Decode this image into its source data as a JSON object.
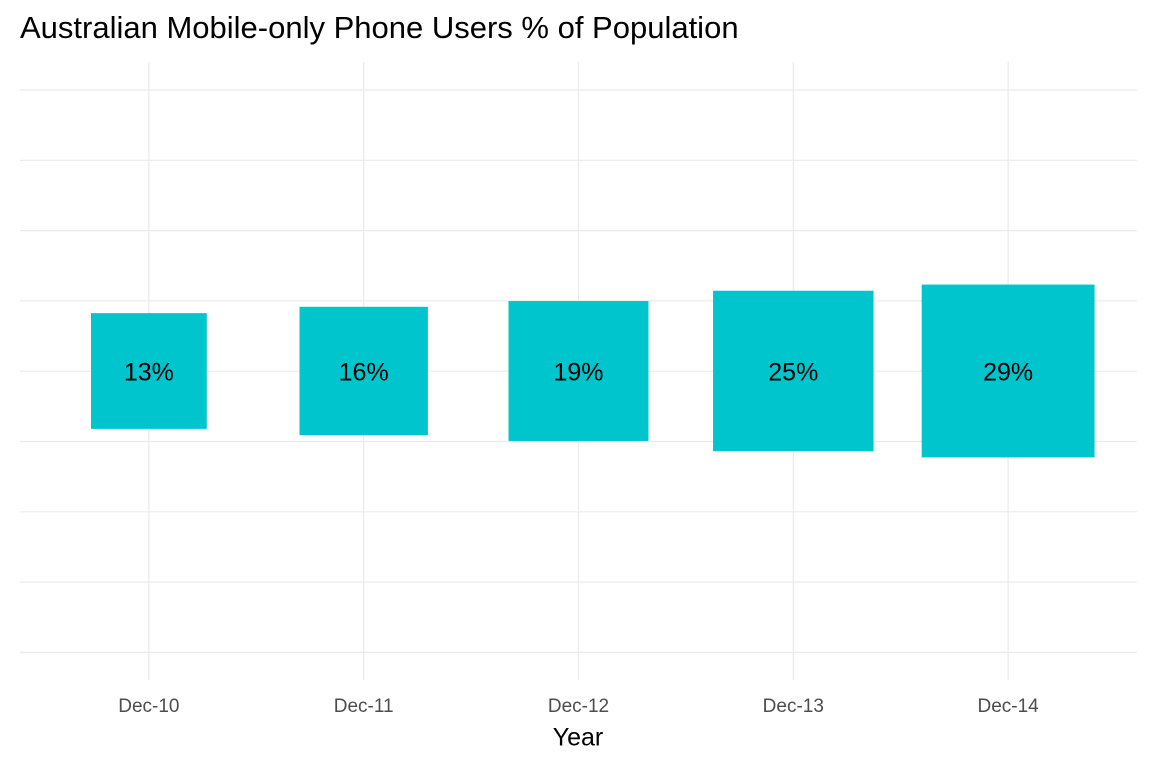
{
  "chart_data": {
    "type": "square",
    "title": "Australian Mobile-only Phone Users % of Population",
    "x_label": "Year",
    "categories": [
      "Dec-10",
      "Dec-11",
      "Dec-12",
      "Dec-13",
      "Dec-14"
    ],
    "values": [
      13,
      16,
      19,
      25,
      29
    ],
    "value_labels": [
      "13%",
      "16%",
      "19%",
      "25%",
      "29%"
    ],
    "color": "#00c5cd",
    "grid": true
  }
}
